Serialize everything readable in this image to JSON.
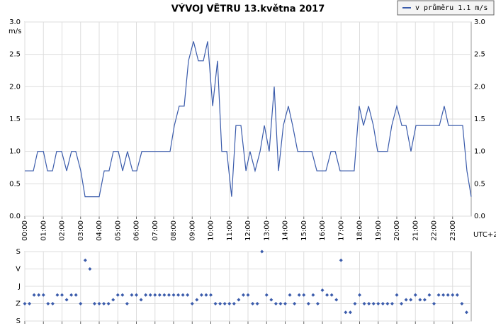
{
  "chart_data": [
    {
      "type": "line",
      "title": "VÝVOJ VĚTRU  13.května 2017",
      "y_label": "m/s",
      "x_label": "UTC+2",
      "xlim": [
        0,
        24
      ],
      "ylim": [
        0,
        3
      ],
      "grid": true,
      "legend": "top-right",
      "xticks": [
        {
          "value": 0,
          "label": "00:00"
        },
        {
          "value": 1,
          "label": "01:00"
        },
        {
          "value": 2,
          "label": "02:00"
        },
        {
          "value": 3,
          "label": "03:00"
        },
        {
          "value": 4,
          "label": "04:00"
        },
        {
          "value": 5,
          "label": "05:00"
        },
        {
          "value": 6,
          "label": "06:00"
        },
        {
          "value": 7,
          "label": "07:00"
        },
        {
          "value": 8,
          "label": "08:00"
        },
        {
          "value": 9,
          "label": "09:00"
        },
        {
          "value": 10,
          "label": "10:00"
        },
        {
          "value": 11,
          "label": "11:00"
        },
        {
          "value": 12,
          "label": "12:00"
        },
        {
          "value": 13,
          "label": "13:00"
        },
        {
          "value": 14,
          "label": "14:00"
        },
        {
          "value": 15,
          "label": "15:00"
        },
        {
          "value": 16,
          "label": "16:00"
        },
        {
          "value": 17,
          "label": "17:00"
        },
        {
          "value": 18,
          "label": "18:00"
        },
        {
          "value": 19,
          "label": "19:00"
        },
        {
          "value": 20,
          "label": "20:00"
        },
        {
          "value": 21,
          "label": "21:00"
        },
        {
          "value": 22,
          "label": "22:00"
        },
        {
          "value": 23,
          "label": "23:00"
        }
      ],
      "yticks": [
        {
          "value": 0,
          "label": "0.0"
        },
        0.5,
        {
          "value": 1,
          "label": "1.0"
        },
        1.5,
        {
          "value": 2,
          "label": "2.0"
        },
        2.5,
        {
          "value": 3,
          "label": "3.0"
        }
      ],
      "x": [
        0,
        0.46,
        0.69,
        1.0,
        1.22,
        1.49,
        1.71,
        1.98,
        2.25,
        2.51,
        2.74,
        3.01,
        3.24,
        4.0,
        4.27,
        4.53,
        4.76,
        5.03,
        5.26,
        5.52,
        5.79,
        6.02,
        6.29,
        7.81,
        8.04,
        8.3,
        8.57,
        8.8,
        9.07,
        9.33,
        9.6,
        9.83,
        10.1,
        10.36,
        10.59,
        10.86,
        11.12,
        11.35,
        11.62,
        11.89,
        12.11,
        12.38,
        12.65,
        12.88,
        13.14,
        13.41,
        13.64,
        13.9,
        14.17,
        14.4,
        14.67,
        15.43,
        15.7,
        16.19,
        16.46,
        16.69,
        16.95,
        17.71,
        17.98,
        18.21,
        18.48,
        18.74,
        18.97,
        19.5,
        19.73,
        20.0,
        20.27,
        20.5,
        20.76,
        21.03,
        22.29,
        22.55,
        22.78,
        23.54,
        23.77,
        24.0
      ],
      "series": [
        {
          "name": "v průměru 1.1 m/s",
          "color": "#3a5bab",
          "values": [
            0.7,
            0.7,
            1.0,
            1.0,
            0.7,
            0.7,
            1.0,
            1.0,
            0.7,
            1.0,
            1.0,
            0.7,
            0.3,
            0.3,
            0.7,
            0.7,
            1.0,
            1.0,
            0.7,
            1.0,
            0.7,
            0.7,
            1.0,
            1.0,
            1.4,
            1.7,
            1.7,
            2.4,
            2.7,
            2.4,
            2.4,
            2.7,
            1.7,
            2.4,
            1.0,
            1.0,
            0.3,
            1.4,
            1.4,
            0.7,
            1.0,
            0.7,
            1.0,
            1.4,
            1.0,
            2.0,
            0.7,
            1.4,
            1.7,
            1.4,
            1.0,
            1.0,
            0.7,
            0.7,
            1.0,
            1.0,
            0.7,
            0.7,
            1.7,
            1.4,
            1.7,
            1.4,
            1.0,
            1.0,
            1.4,
            1.7,
            1.4,
            1.4,
            1.0,
            1.4,
            1.4,
            1.7,
            1.4,
            1.4,
            0.7,
            0.3
          ]
        }
      ]
    },
    {
      "type": "scatter",
      "xlim": [
        0,
        24
      ],
      "ylim": [
        360,
        0
      ],
      "grid": true,
      "color": "#3a5bab",
      "xticks": [
        0,
        1,
        2,
        3,
        4,
        5,
        6,
        7,
        8,
        9,
        10,
        11,
        12,
        13,
        14,
        15,
        16,
        17,
        18,
        19,
        20,
        21,
        22,
        23
      ],
      "yticks": [
        {
          "value": 0,
          "label": "S"
        },
        {
          "value": 90,
          "label": "V"
        },
        {
          "value": 180,
          "label": "J"
        },
        {
          "value": 270,
          "label": "Z"
        },
        {
          "value": 360,
          "label": "S"
        }
      ],
      "x": [
        0,
        0.25,
        0.5,
        0.75,
        1,
        1.25,
        1.5,
        1.75,
        2,
        2.25,
        2.5,
        2.75,
        3,
        3.25,
        3.5,
        3.75,
        4,
        4.25,
        4.5,
        4.75,
        5,
        5.25,
        5.5,
        5.75,
        6,
        6.25,
        6.5,
        6.75,
        7,
        7.25,
        7.5,
        7.75,
        8,
        8.25,
        8.5,
        8.75,
        9,
        9.25,
        9.5,
        9.75,
        10,
        10.25,
        10.5,
        10.75,
        11,
        11.25,
        11.5,
        11.75,
        12,
        12.25,
        12.5,
        12.75,
        13,
        13.25,
        13.5,
        13.75,
        14,
        14.25,
        14.5,
        14.75,
        15,
        15.25,
        15.5,
        15.75,
        16,
        16.25,
        16.5,
        16.75,
        17,
        17.25,
        17.5,
        17.75,
        18,
        18.25,
        18.5,
        18.75,
        19,
        19.25,
        19.5,
        19.75,
        20,
        20.25,
        20.5,
        20.75,
        21,
        21.25,
        21.5,
        21.75,
        22,
        22.25,
        22.5,
        22.75,
        23,
        23.25,
        23.5,
        23.75
      ],
      "values": [
        270,
        270,
        225,
        225,
        225,
        270,
        270,
        225,
        225,
        250,
        225,
        225,
        270,
        45,
        90,
        270,
        270,
        270,
        270,
        250,
        225,
        225,
        270,
        225,
        225,
        250,
        225,
        225,
        225,
        225,
        225,
        225,
        225,
        225,
        225,
        225,
        270,
        250,
        225,
        225,
        225,
        270,
        270,
        270,
        270,
        270,
        250,
        225,
        225,
        270,
        270,
        0,
        225,
        250,
        270,
        270,
        270,
        225,
        270,
        225,
        225,
        270,
        225,
        270,
        200,
        225,
        225,
        250,
        45,
        315,
        315,
        270,
        225,
        270,
        270,
        270,
        270,
        270,
        270,
        270,
        225,
        270,
        250,
        250,
        225,
        250,
        250,
        225,
        270,
        225,
        225,
        225,
        225,
        225,
        270,
        315
      ]
    }
  ]
}
